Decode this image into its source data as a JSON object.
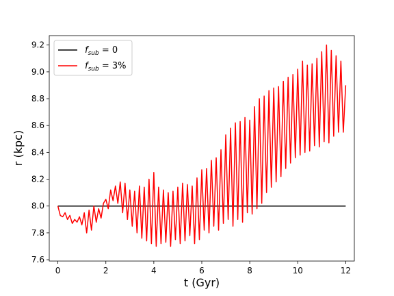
{
  "chart_data": {
    "type": "line",
    "title": "",
    "xlabel": "t (Gyr)",
    "ylabel": "r (kpc)",
    "xlim": [
      -0.36,
      12.36
    ],
    "ylim": [
      7.59,
      9.27
    ],
    "xticks": [
      "0",
      "2",
      "4",
      "6",
      "8",
      "10",
      "12"
    ],
    "yticks": [
      "7.6",
      "7.8",
      "8.0",
      "8.2",
      "8.4",
      "8.6",
      "8.8",
      "9.0",
      "9.2"
    ],
    "grid": false,
    "legend_position": "top-left",
    "series": [
      {
        "name": "f_sub = 0",
        "legend_base": "f",
        "legend_sub": "sub",
        "legend_rest": " = 0",
        "color": "#000000",
        "x": [
          0,
          12
        ],
        "y": [
          8.0,
          8.0
        ]
      },
      {
        "name": "f_sub = 3%",
        "legend_base": "f",
        "legend_sub": "sub",
        "legend_rest": " = 3%",
        "color": "#ff0000",
        "x": [
          0.0,
          0.1,
          0.2,
          0.3,
          0.4,
          0.5,
          0.6,
          0.7,
          0.8,
          0.9,
          1.0,
          1.1,
          1.2,
          1.3,
          1.4,
          1.5,
          1.6,
          1.7,
          1.8,
          1.9,
          2.0,
          2.1,
          2.2,
          2.3,
          2.4,
          2.5,
          2.6,
          2.7,
          2.8,
          2.9,
          3.0,
          3.1,
          3.2,
          3.3,
          3.4,
          3.5,
          3.6,
          3.7,
          3.8,
          3.9,
          4.0,
          4.1,
          4.2,
          4.3,
          4.4,
          4.5,
          4.6,
          4.7,
          4.8,
          4.9,
          5.0,
          5.1,
          5.2,
          5.3,
          5.4,
          5.5,
          5.6,
          5.7,
          5.8,
          5.9,
          6.0,
          6.1,
          6.2,
          6.3,
          6.4,
          6.5,
          6.6,
          6.7,
          6.8,
          6.9,
          7.0,
          7.1,
          7.2,
          7.3,
          7.4,
          7.5,
          7.6,
          7.7,
          7.8,
          7.9,
          8.0,
          8.1,
          8.2,
          8.3,
          8.4,
          8.5,
          8.6,
          8.7,
          8.8,
          8.9,
          9.0,
          9.1,
          9.2,
          9.3,
          9.4,
          9.5,
          9.6,
          9.7,
          9.8,
          9.9,
          10.0,
          10.1,
          10.2,
          10.3,
          10.4,
          10.5,
          10.6,
          10.7,
          10.8,
          10.9,
          11.0,
          11.1,
          11.2,
          11.3,
          11.4,
          11.5,
          11.6,
          11.7,
          11.8,
          11.9,
          12.0
        ],
        "y": [
          8.0,
          7.93,
          7.92,
          7.95,
          7.9,
          7.93,
          7.87,
          7.9,
          7.88,
          7.92,
          7.86,
          7.95,
          7.8,
          7.97,
          7.82,
          8.0,
          7.88,
          7.98,
          7.91,
          8.02,
          8.05,
          7.98,
          8.12,
          8.04,
          8.15,
          8.02,
          8.18,
          7.95,
          8.17,
          7.9,
          8.12,
          7.85,
          8.11,
          7.8,
          8.15,
          7.76,
          8.14,
          7.74,
          8.2,
          7.72,
          8.25,
          7.7,
          8.14,
          7.72,
          8.12,
          7.73,
          8.1,
          7.7,
          8.11,
          7.75,
          8.14,
          7.72,
          8.17,
          7.74,
          8.16,
          7.78,
          8.15,
          7.72,
          8.21,
          7.75,
          8.27,
          7.82,
          8.28,
          7.8,
          8.34,
          7.85,
          8.36,
          7.82,
          8.42,
          7.87,
          8.53,
          7.9,
          8.58,
          7.85,
          8.62,
          7.9,
          8.63,
          7.88,
          8.66,
          7.95,
          8.64,
          7.94,
          8.74,
          7.98,
          8.8,
          8.02,
          8.82,
          8.1,
          8.86,
          8.14,
          8.88,
          8.18,
          8.89,
          8.22,
          8.93,
          8.28,
          8.96,
          8.32,
          8.98,
          8.36,
          9.02,
          8.38,
          9.08,
          8.4,
          9.05,
          8.41,
          9.06,
          8.45,
          9.1,
          8.44,
          9.15,
          8.48,
          9.2,
          8.47,
          9.16,
          8.52,
          9.12,
          8.55,
          9.08,
          8.55,
          8.9
        ]
      }
    ]
  }
}
